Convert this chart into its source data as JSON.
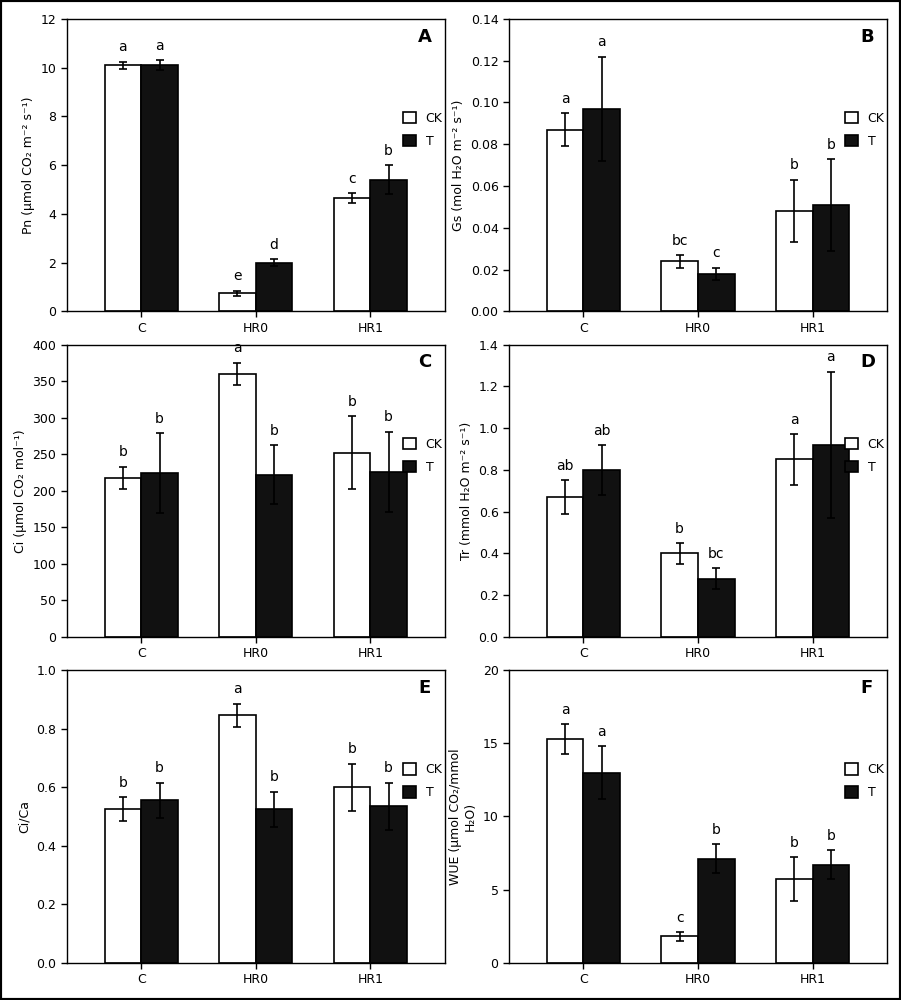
{
  "panels": [
    {
      "label": "A",
      "ylabel": "Pn (μmol CO₂ m⁻² s⁻¹)",
      "ylim": [
        0,
        12
      ],
      "yticks": [
        0,
        2,
        4,
        6,
        8,
        10,
        12
      ],
      "categories": [
        "C",
        "HR0",
        "HR1"
      ],
      "ck_values": [
        10.1,
        0.75,
        4.65
      ],
      "t_values": [
        10.1,
        2.0,
        5.4
      ],
      "ck_errors": [
        0.15,
        0.1,
        0.2
      ],
      "t_errors": [
        0.2,
        0.15,
        0.6
      ],
      "ck_letters": [
        "a",
        "e",
        "c"
      ],
      "t_letters": [
        "a",
        "d",
        "b"
      ]
    },
    {
      "label": "B",
      "ylabel": "Gs (mol H₂O m⁻² s⁻¹)",
      "ylim": [
        0,
        0.14
      ],
      "yticks": [
        0,
        0.02,
        0.04,
        0.06,
        0.08,
        0.1,
        0.12,
        0.14
      ],
      "categories": [
        "C",
        "HR0",
        "HR1"
      ],
      "ck_values": [
        0.087,
        0.024,
        0.048
      ],
      "t_values": [
        0.097,
        0.018,
        0.051
      ],
      "ck_errors": [
        0.008,
        0.003,
        0.015
      ],
      "t_errors": [
        0.025,
        0.003,
        0.022
      ],
      "ck_letters": [
        "a",
        "bc",
        "b"
      ],
      "t_letters": [
        "a",
        "c",
        "b"
      ]
    },
    {
      "label": "C",
      "ylabel": "Ci (μmol CO₂ mol⁻¹)",
      "ylim": [
        0,
        400
      ],
      "yticks": [
        0,
        50,
        100,
        150,
        200,
        250,
        300,
        350,
        400
      ],
      "categories": [
        "C",
        "HR0",
        "HR1"
      ],
      "ck_values": [
        218,
        360,
        252
      ],
      "t_values": [
        224,
        222,
        226
      ],
      "ck_errors": [
        15,
        15,
        50
      ],
      "t_errors": [
        55,
        40,
        55
      ],
      "ck_letters": [
        "b",
        "a",
        "b"
      ],
      "t_letters": [
        "b",
        "b",
        "b"
      ]
    },
    {
      "label": "D",
      "ylabel": "Tr (mmol H₂O m⁻² s⁻¹)",
      "ylim": [
        0,
        1.4
      ],
      "yticks": [
        0,
        0.2,
        0.4,
        0.6,
        0.8,
        1.0,
        1.2,
        1.4
      ],
      "categories": [
        "C",
        "HR0",
        "HR1"
      ],
      "ck_values": [
        0.67,
        0.4,
        0.85
      ],
      "t_values": [
        0.8,
        0.28,
        0.92
      ],
      "ck_errors": [
        0.08,
        0.05,
        0.12
      ],
      "t_errors": [
        0.12,
        0.05,
        0.35
      ],
      "ck_letters": [
        "ab",
        "b",
        "a"
      ],
      "t_letters": [
        "ab",
        "bc",
        "a"
      ]
    },
    {
      "label": "E",
      "ylabel": "Ci/Ca",
      "ylim": [
        0,
        1
      ],
      "yticks": [
        0,
        0.2,
        0.4,
        0.6,
        0.8,
        1.0
      ],
      "categories": [
        "C",
        "HR0",
        "HR1"
      ],
      "ck_values": [
        0.525,
        0.845,
        0.6
      ],
      "t_values": [
        0.555,
        0.525,
        0.535
      ],
      "ck_errors": [
        0.04,
        0.04,
        0.08
      ],
      "t_errors": [
        0.06,
        0.06,
        0.08
      ],
      "ck_letters": [
        "b",
        "a",
        "b"
      ],
      "t_letters": [
        "b",
        "b",
        "b"
      ]
    },
    {
      "label": "F",
      "ylabel": "WUE (μmol CO₂/mmol\nH₂O)",
      "ylim": [
        0,
        20
      ],
      "yticks": [
        0,
        5,
        10,
        15,
        20
      ],
      "categories": [
        "C",
        "HR0",
        "HR1"
      ],
      "ck_values": [
        15.3,
        1.8,
        5.7
      ],
      "t_values": [
        13.0,
        7.1,
        6.7
      ],
      "ck_errors": [
        1.0,
        0.3,
        1.5
      ],
      "t_errors": [
        1.8,
        1.0,
        1.0
      ],
      "ck_letters": [
        "a",
        "c",
        "b"
      ],
      "t_letters": [
        "a",
        "b",
        "b"
      ]
    }
  ],
  "bar_width": 0.32,
  "ck_color": "#ffffff",
  "t_color": "#111111",
  "edge_color": "#000000",
  "letter_fontsize": 10,
  "ylabel_fontsize": 9,
  "panel_label_fontsize": 13,
  "tick_fontsize": 9,
  "legend_fontsize": 9,
  "capsize": 3
}
